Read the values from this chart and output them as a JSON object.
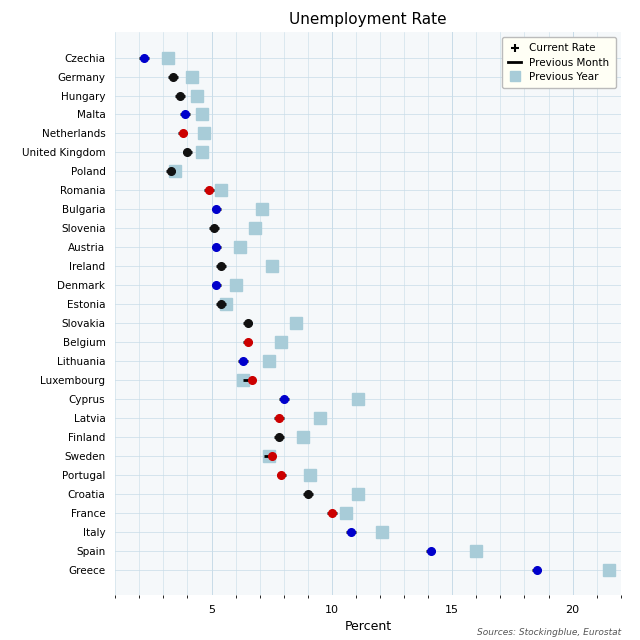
{
  "title": "Unemployment Rate",
  "xlabel": "Percent",
  "source": "Sources: Stockingblue, Eurostat",
  "countries": [
    "Czechia",
    "Germany",
    "Hungary",
    "Malta",
    "Netherlands",
    "United Kingdom",
    "Poland",
    "Romania",
    "Bulgaria",
    "Slovenia",
    "Austria",
    "Ireland",
    "Denmark",
    "Estonia",
    "Slovakia",
    "Belgium",
    "Lithuania",
    "Luxembourg",
    "Cyprus",
    "Latvia",
    "Finland",
    "Sweden",
    "Portugal",
    "Croatia",
    "France",
    "Italy",
    "Spain",
    "Greece"
  ],
  "current_rate": [
    2.2,
    3.4,
    3.7,
    3.9,
    3.8,
    4.0,
    3.3,
    4.9,
    5.2,
    5.1,
    5.2,
    5.4,
    5.2,
    5.4,
    6.5,
    6.5,
    6.3,
    6.7,
    8.0,
    7.8,
    7.8,
    7.5,
    7.9,
    9.0,
    10.0,
    10.8,
    14.1,
    18.5
  ],
  "current_color": [
    "#0000cc",
    "#111111",
    "#111111",
    "#0000cc",
    "#cc0000",
    "#111111",
    "#111111",
    "#cc0000",
    "#0000cc",
    "#111111",
    "#0000cc",
    "#111111",
    "#0000cc",
    "#111111",
    "#111111",
    "#cc0000",
    "#0000cc",
    "#cc0000",
    "#0000cc",
    "#cc0000",
    "#111111",
    "#cc0000",
    "#cc0000",
    "#111111",
    "#cc0000",
    "#0000cc",
    "#0000cc",
    "#0000cc"
  ],
  "prev_month_left": [
    2.0,
    3.2,
    3.5,
    3.7,
    3.6,
    3.8,
    3.1,
    4.7,
    5.0,
    4.9,
    5.0,
    5.2,
    5.0,
    5.2,
    6.3,
    6.3,
    6.1,
    6.3,
    7.8,
    7.6,
    7.6,
    7.2,
    7.7,
    8.8,
    9.8,
    10.6,
    13.9,
    18.3
  ],
  "prev_month_right": [
    2.4,
    3.6,
    3.9,
    4.1,
    4.0,
    4.2,
    3.5,
    5.1,
    5.4,
    5.3,
    5.4,
    5.6,
    5.4,
    5.6,
    6.7,
    6.7,
    6.5,
    6.7,
    8.2,
    8.0,
    8.0,
    7.6,
    8.1,
    9.2,
    10.2,
    11.0,
    14.3,
    18.7
  ],
  "prev_year": [
    3.2,
    4.2,
    4.4,
    4.6,
    4.7,
    4.6,
    3.5,
    5.4,
    7.1,
    6.8,
    6.2,
    7.5,
    6.0,
    5.6,
    8.5,
    7.9,
    7.4,
    6.3,
    11.1,
    9.5,
    8.8,
    7.4,
    9.1,
    11.1,
    10.6,
    12.1,
    16.0,
    21.5
  ],
  "xlim": [
    1.0,
    22.0
  ],
  "xticks": [
    5,
    10,
    15,
    20
  ],
  "bg_color": "#f5f8fa",
  "grid_color": "#c8dce8",
  "prev_year_color": "#a8ccd8",
  "legend_bg": "#fffff5"
}
